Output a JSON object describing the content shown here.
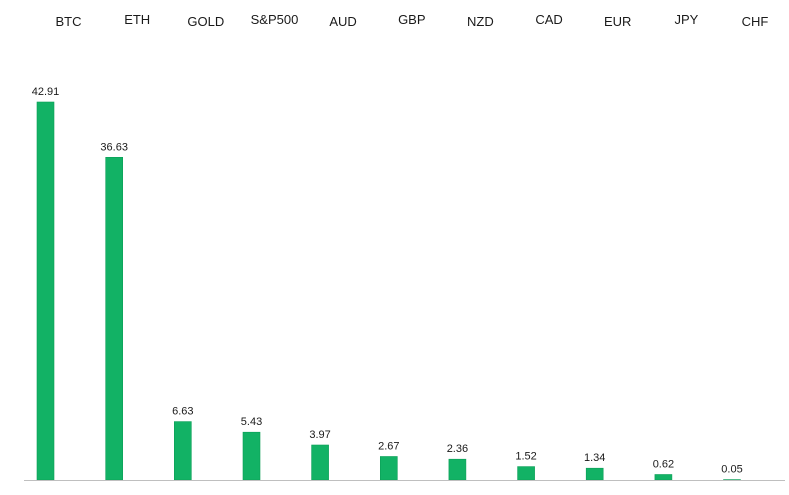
{
  "colors": {
    "bar_fill": "#12b265",
    "bar_edge": "#0a9e57",
    "baseline": "#bfbfbf"
  },
  "chart_data": {
    "type": "bar",
    "title": "",
    "xlabel": "",
    "ylabel": "",
    "categories": [
      "BTC",
      "ETH",
      "GOLD",
      "S&P500",
      "AUD",
      "GBP",
      "NZD",
      "CAD",
      "EUR",
      "JPY",
      "CHF"
    ],
    "values": [
      42.91,
      36.63,
      6.63,
      5.43,
      3.97,
      2.67,
      2.36,
      1.52,
      1.34,
      0.62,
      0.05
    ],
    "value_labels": [
      "42.91",
      "36.63",
      "6.63",
      "5.43",
      "3.97",
      "2.67",
      "2.36",
      "1.52",
      "1.34",
      "0.62",
      "0.05"
    ],
    "ylim": [
      0,
      42.91
    ],
    "grid": false,
    "legend": "none",
    "category_label_position": "top"
  }
}
